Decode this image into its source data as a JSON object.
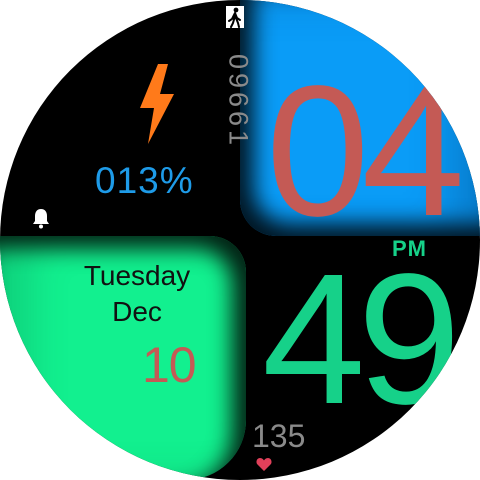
{
  "watch": {
    "hour": "04",
    "minute": "49",
    "ampm": "PM",
    "steps": "09661",
    "battery": "013%",
    "day_name": "Tuesday",
    "month": "Dec",
    "date": "10",
    "heart_rate": "135"
  },
  "icons": {
    "steps": "walking-person-icon",
    "battery": "lightning-bolt-icon",
    "alarm": "bell-icon",
    "heart_rate": "heart-icon"
  },
  "colors": {
    "hour": "#c45a55",
    "minute": "#16d189",
    "blue_panel": "#0a9cf7",
    "green_panel": "#12f08f",
    "battery_text": "#1e9be8",
    "bolt": "#ff7a1a",
    "heart": "#e0405a"
  }
}
